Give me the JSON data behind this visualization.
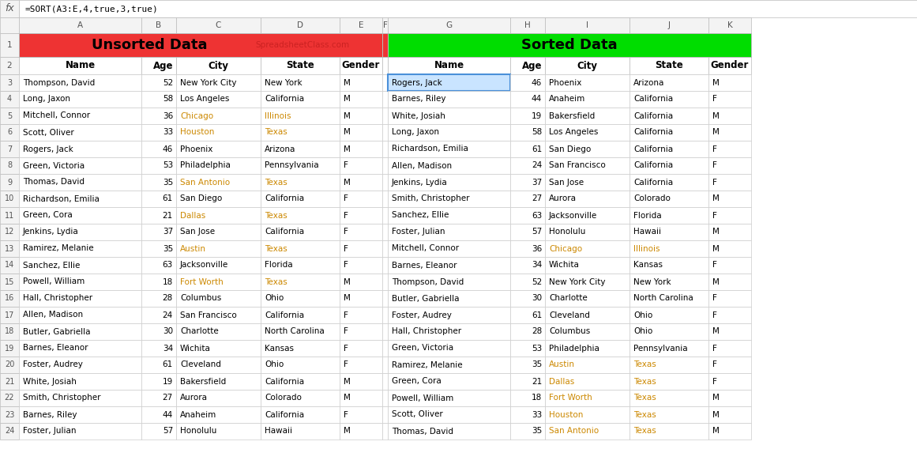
{
  "formula_bar": "=SORT(A3:E,4,true,3,true)",
  "unsorted_title": "Unsorted Data",
  "sorted_title": "Sorted Data",
  "watermark": "SpreadsheetClass.com",
  "headers": [
    "Name",
    "Age",
    "City",
    "State",
    "Gender"
  ],
  "unsorted_data": [
    [
      "Thompson, David",
      52,
      "New York City",
      "New York",
      "M"
    ],
    [
      "Long, Jaxon",
      58,
      "Los Angeles",
      "California",
      "M"
    ],
    [
      "Mitchell, Connor",
      36,
      "Chicago",
      "Illinois",
      "M"
    ],
    [
      "Scott, Oliver",
      33,
      "Houston",
      "Texas",
      "M"
    ],
    [
      "Rogers, Jack",
      46,
      "Phoenix",
      "Arizona",
      "M"
    ],
    [
      "Green, Victoria",
      53,
      "Philadelphia",
      "Pennsylvania",
      "F"
    ],
    [
      "Thomas, David",
      35,
      "San Antonio",
      "Texas",
      "M"
    ],
    [
      "Richardson, Emilia",
      61,
      "San Diego",
      "California",
      "F"
    ],
    [
      "Green, Cora",
      21,
      "Dallas",
      "Texas",
      "F"
    ],
    [
      "Jenkins, Lydia",
      37,
      "San Jose",
      "California",
      "F"
    ],
    [
      "Ramirez, Melanie",
      35,
      "Austin",
      "Texas",
      "F"
    ],
    [
      "Sanchez, Ellie",
      63,
      "Jacksonville",
      "Florida",
      "F"
    ],
    [
      "Powell, William",
      18,
      "Fort Worth",
      "Texas",
      "M"
    ],
    [
      "Hall, Christopher",
      28,
      "Columbus",
      "Ohio",
      "M"
    ],
    [
      "Allen, Madison",
      24,
      "San Francisco",
      "California",
      "F"
    ],
    [
      "Butler, Gabriella",
      30,
      "Charlotte",
      "North Carolina",
      "F"
    ],
    [
      "Barnes, Eleanor",
      34,
      "Wichita",
      "Kansas",
      "F"
    ],
    [
      "Foster, Audrey",
      61,
      "Cleveland",
      "Ohio",
      "F"
    ],
    [
      "White, Josiah",
      19,
      "Bakersfield",
      "California",
      "M"
    ],
    [
      "Smith, Christopher",
      27,
      "Aurora",
      "Colorado",
      "M"
    ],
    [
      "Barnes, Riley",
      44,
      "Anaheim",
      "California",
      "F"
    ],
    [
      "Foster, Julian",
      57,
      "Honolulu",
      "Hawaii",
      "M"
    ]
  ],
  "sorted_data": [
    [
      "Rogers, Jack",
      46,
      "Phoenix",
      "Arizona",
      "M"
    ],
    [
      "Barnes, Riley",
      44,
      "Anaheim",
      "California",
      "F"
    ],
    [
      "White, Josiah",
      19,
      "Bakersfield",
      "California",
      "M"
    ],
    [
      "Long, Jaxon",
      58,
      "Los Angeles",
      "California",
      "M"
    ],
    [
      "Richardson, Emilia",
      61,
      "San Diego",
      "California",
      "F"
    ],
    [
      "Allen, Madison",
      24,
      "San Francisco",
      "California",
      "F"
    ],
    [
      "Jenkins, Lydia",
      37,
      "San Jose",
      "California",
      "F"
    ],
    [
      "Smith, Christopher",
      27,
      "Aurora",
      "Colorado",
      "M"
    ],
    [
      "Sanchez, Ellie",
      63,
      "Jacksonville",
      "Florida",
      "F"
    ],
    [
      "Foster, Julian",
      57,
      "Honolulu",
      "Hawaii",
      "M"
    ],
    [
      "Mitchell, Connor",
      36,
      "Chicago",
      "Illinois",
      "M"
    ],
    [
      "Barnes, Eleanor",
      34,
      "Wichita",
      "Kansas",
      "F"
    ],
    [
      "Thompson, David",
      52,
      "New York City",
      "New York",
      "M"
    ],
    [
      "Butler, Gabriella",
      30,
      "Charlotte",
      "North Carolina",
      "F"
    ],
    [
      "Foster, Audrey",
      61,
      "Cleveland",
      "Ohio",
      "F"
    ],
    [
      "Hall, Christopher",
      28,
      "Columbus",
      "Ohio",
      "M"
    ],
    [
      "Green, Victoria",
      53,
      "Philadelphia",
      "Pennsylvania",
      "F"
    ],
    [
      "Ramirez, Melanie",
      35,
      "Austin",
      "Texas",
      "F"
    ],
    [
      "Green, Cora",
      21,
      "Dallas",
      "Texas",
      "F"
    ],
    [
      "Powell, William",
      18,
      "Fort Worth",
      "Texas",
      "M"
    ],
    [
      "Scott, Oliver",
      33,
      "Houston",
      "Texas",
      "M"
    ],
    [
      "Thomas, David",
      35,
      "San Antonio",
      "Texas",
      "M"
    ]
  ],
  "title_bg_left": "#EE3333",
  "title_bg_right": "#00DD00",
  "col_header_bg": "#F3F3F3",
  "row_header_bg": "#F3F3F3",
  "highlight_cell_color": "#C9E4FF",
  "highlight_cell_border": "#4A90D9",
  "orange_color": "#CC8800",
  "grid_color": "#CCCCCC",
  "header_border": "#BBBBBB"
}
